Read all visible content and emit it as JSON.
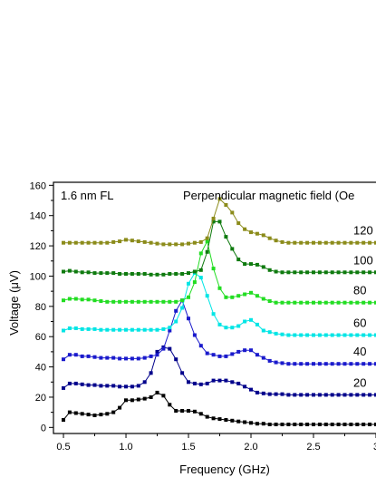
{
  "chart_data": {
    "type": "line",
    "annotation_left": "1.6 nm FL",
    "annotation_right": "Perpendicular magnetic field (Oe",
    "xlabel": "Frequency (GHz)",
    "ylabel": "Voltage (μV)",
    "xlim": [
      0.42,
      3.0
    ],
    "ylim": [
      -4,
      162
    ],
    "xticks": [
      0.5,
      1.0,
      1.5,
      2.0,
      2.5,
      3.0
    ],
    "xtick_labels": [
      "0.5",
      "1.0",
      "1.5",
      "2.0",
      "2.5",
      "3"
    ],
    "yticks": [
      0,
      20,
      40,
      60,
      80,
      100,
      120,
      140,
      160
    ],
    "ytick_labels": [
      "0",
      "20",
      "40",
      "60",
      "80",
      "100",
      "120",
      "140",
      "160"
    ],
    "x": [
      0.5,
      0.55,
      0.6,
      0.65,
      0.7,
      0.75,
      0.8,
      0.85,
      0.9,
      0.95,
      1.0,
      1.05,
      1.1,
      1.15,
      1.2,
      1.25,
      1.3,
      1.35,
      1.4,
      1.45,
      1.5,
      1.55,
      1.6,
      1.65,
      1.7,
      1.75,
      1.8,
      1.85,
      1.9,
      1.95,
      2.0,
      2.05,
      2.1,
      2.15,
      2.2,
      2.25,
      2.3,
      2.35,
      2.4,
      2.45,
      2.5,
      2.55,
      2.6,
      2.65,
      2.7,
      2.75,
      2.8,
      2.85,
      2.9,
      2.95,
      3.0
    ],
    "series": [
      {
        "name": "",
        "label": "",
        "color": "#000000",
        "values": [
          5,
          10,
          9.5,
          9,
          8.5,
          8,
          8.5,
          9,
          10,
          13,
          18,
          18,
          18.5,
          19,
          20,
          23,
          21,
          15,
          11,
          11,
          11,
          10.5,
          9,
          7,
          6,
          5.5,
          5,
          4.5,
          4,
          3.5,
          3,
          2.5,
          2.5,
          2,
          2,
          2,
          2,
          2,
          2,
          2,
          2,
          2,
          2,
          2,
          2,
          2,
          2,
          2,
          2,
          2,
          2
        ]
      },
      {
        "name": "",
        "label": "20",
        "color": "#00008b",
        "values": [
          26,
          29,
          29,
          28.5,
          28,
          28,
          27.5,
          27.5,
          27.5,
          27,
          27,
          27,
          27.5,
          30,
          36,
          50,
          53,
          52,
          45,
          36,
          30,
          29,
          28.5,
          29,
          31,
          31,
          31,
          30,
          29,
          27,
          25,
          23,
          22.5,
          22,
          22,
          22,
          21.5,
          21.5,
          21.5,
          21.5,
          21.5,
          21.5,
          21.5,
          21.5,
          21.5,
          21.5,
          21.5,
          21.5,
          21.5,
          21.5,
          21.5
        ]
      },
      {
        "name": "",
        "label": "40",
        "color": "#1a1acc",
        "values": [
          45,
          48,
          48,
          47,
          47,
          46.5,
          46,
          46,
          46,
          45.5,
          45.5,
          45.5,
          45.5,
          46,
          47,
          48,
          52,
          64,
          77,
          84,
          72,
          61,
          54,
          49,
          48,
          47,
          47,
          48.5,
          50,
          51,
          51,
          48,
          46,
          44,
          43,
          42.5,
          42,
          42,
          42,
          42,
          42,
          42,
          42,
          42,
          42,
          42,
          42,
          42,
          42,
          42,
          42
        ]
      },
      {
        "name": "",
        "label": "60",
        "color": "#00e5e5",
        "values": [
          64,
          65.5,
          65.5,
          65,
          65,
          65,
          64.5,
          64.5,
          64.5,
          64.5,
          64.5,
          64.5,
          64.5,
          64.5,
          64.5,
          64.5,
          65,
          66,
          70,
          79,
          95,
          102,
          99,
          87,
          75,
          68,
          66,
          66,
          67,
          70,
          71,
          68,
          64,
          63,
          62,
          61.5,
          61,
          61,
          61,
          61,
          61,
          61,
          61,
          61,
          61,
          61,
          61,
          61,
          61,
          61,
          61
        ]
      },
      {
        "name": "",
        "label": "80",
        "color": "#22dd22",
        "values": [
          84,
          85,
          85,
          84.5,
          84.5,
          84,
          83.5,
          83,
          83,
          83,
          83,
          83,
          83,
          83,
          83,
          83,
          83,
          83,
          83,
          84,
          86,
          96,
          115,
          123,
          105,
          92,
          86,
          86,
          87,
          88,
          89,
          87,
          85,
          83.5,
          82.5,
          82.5,
          82.5,
          82.5,
          82.5,
          82.5,
          82.5,
          82.5,
          82.5,
          82.5,
          82.5,
          82.5,
          82.5,
          82.5,
          82.5,
          82.5,
          82.5
        ]
      },
      {
        "name": "",
        "label": "100",
        "color": "#0e7a0e",
        "values": [
          103,
          103.5,
          103,
          102.5,
          102.5,
          102,
          102,
          102,
          102,
          101.5,
          101.5,
          101.5,
          101.5,
          101.5,
          101,
          101,
          101,
          101.5,
          101.5,
          101.5,
          102,
          103,
          104,
          116,
          136,
          136,
          126,
          118,
          111,
          108,
          108,
          107.5,
          106,
          104,
          103,
          102.5,
          102.5,
          102.5,
          102.5,
          102.5,
          102.5,
          102.5,
          102.5,
          102.5,
          102.5,
          102.5,
          102.5,
          102.5,
          102.5,
          102.5,
          102.5
        ]
      },
      {
        "name": "",
        "label": "120",
        "color": "#8b8b1a",
        "values": [
          122,
          122,
          122,
          122,
          122,
          122,
          122,
          122,
          122.5,
          123,
          124,
          123.5,
          123,
          122.5,
          122,
          121.5,
          121,
          121,
          121,
          121,
          121.5,
          122,
          122.5,
          125,
          138,
          151,
          147,
          142,
          135,
          131,
          129,
          128,
          127,
          125,
          123.5,
          122.5,
          122,
          122,
          122,
          122,
          122,
          122,
          122,
          122,
          122,
          122,
          122,
          122,
          122,
          122,
          122
        ]
      }
    ]
  }
}
